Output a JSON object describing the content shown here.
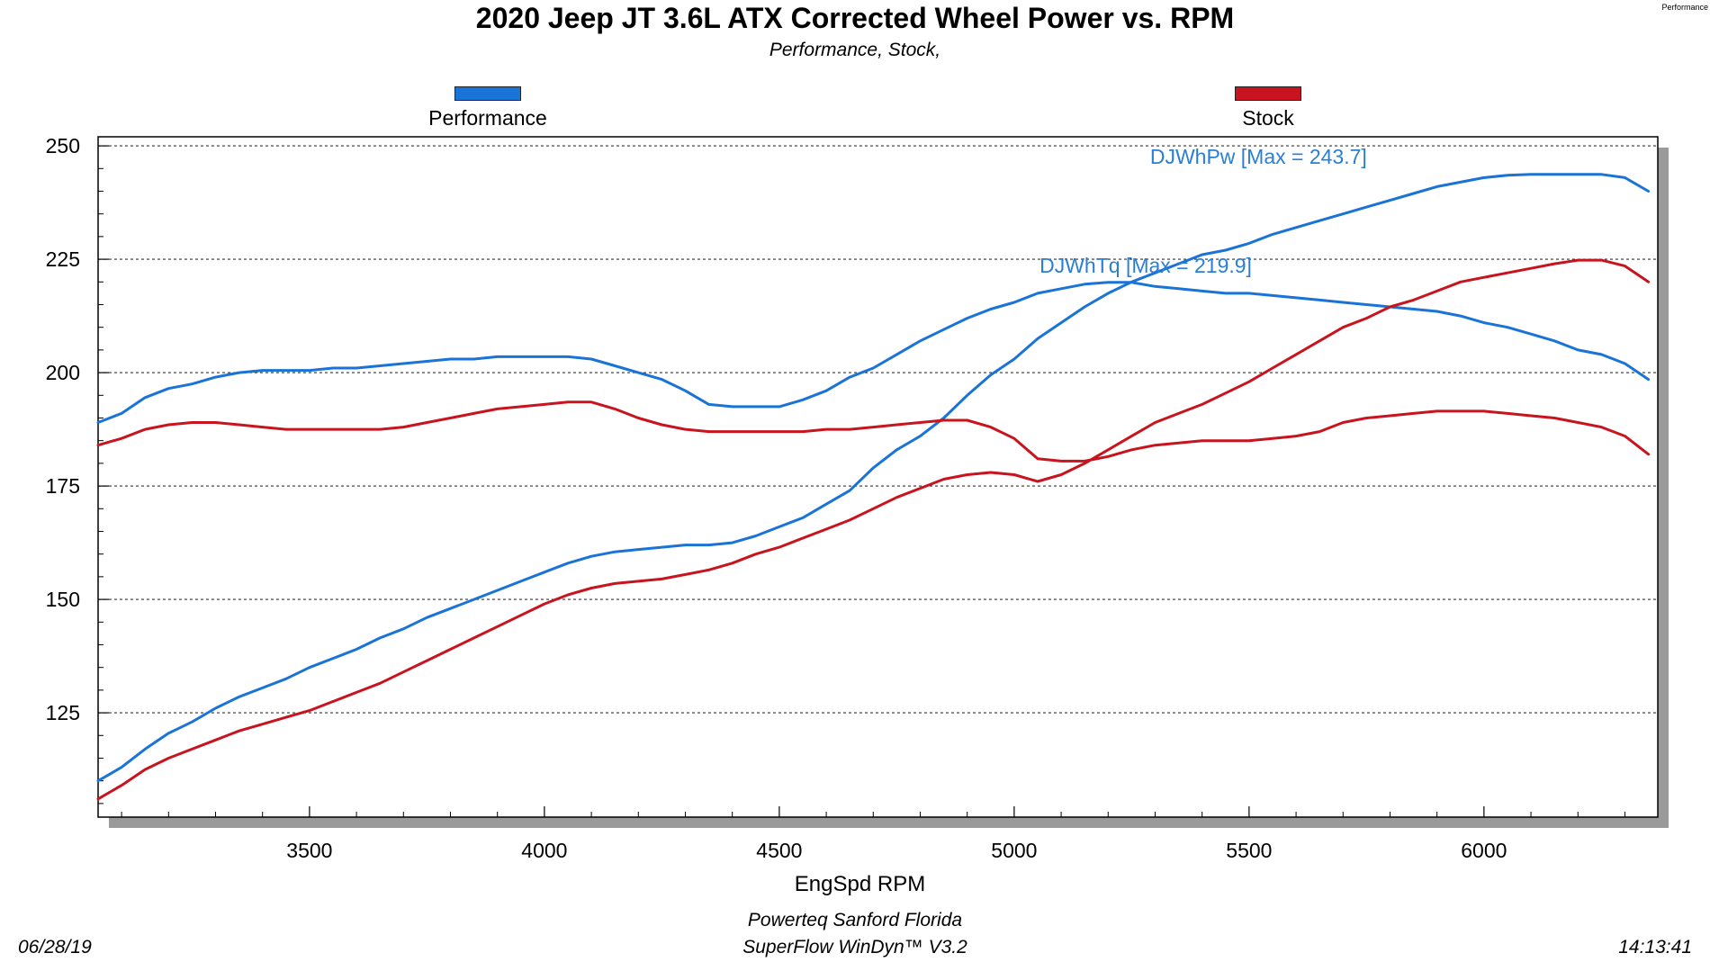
{
  "header": {
    "title": "2020 Jeep JT 3.6L ATX Corrected Wheel Power vs. RPM",
    "subtitle": "Performance, Stock,",
    "corner_tag": "Performance"
  },
  "footer": {
    "date": "06/28/19",
    "shop": "Powerteq Sanford Florida",
    "software": "SuperFlow WinDyn™ V3.2",
    "time": "14:13:41"
  },
  "colors": {
    "performance": "#1a73d6",
    "stock": "#c8141e",
    "annotation": "#2a7fd4",
    "grid": "#333333"
  },
  "chart_data": {
    "type": "line",
    "title": "2020 Jeep JT 3.6L ATX Corrected Wheel Power vs. RPM",
    "subtitle": "Performance, Stock,",
    "xlabel": "EngSpd RPM",
    "ylabel": "",
    "xlim": [
      3050,
      6370
    ],
    "ylim": [
      102,
      252
    ],
    "xticks": [
      3500,
      4000,
      4500,
      5000,
      5500,
      6000
    ],
    "yticks": [
      125,
      150,
      175,
      200,
      225,
      250
    ],
    "grid": true,
    "legend": [
      {
        "name": "Performance",
        "color": "#1a73d6",
        "position": "top-left"
      },
      {
        "name": "Stock",
        "color": "#c8141e",
        "position": "top-right"
      }
    ],
    "annotations": [
      {
        "text": "DJWhPw [Max = 243.7]",
        "x": 5520,
        "y": 246
      },
      {
        "text": "DJWhTq [Max = 219.9]",
        "x": 5280,
        "y": 222
      }
    ],
    "series": [
      {
        "name": "Performance",
        "measure": "DJWhTq",
        "color": "#1a73d6",
        "x": [
          3050,
          3100,
          3150,
          3200,
          3250,
          3300,
          3350,
          3400,
          3450,
          3500,
          3550,
          3600,
          3650,
          3700,
          3750,
          3800,
          3850,
          3900,
          3950,
          4000,
          4050,
          4100,
          4150,
          4200,
          4250,
          4300,
          4350,
          4400,
          4450,
          4500,
          4550,
          4600,
          4650,
          4700,
          4750,
          4800,
          4850,
          4900,
          4950,
          5000,
          5050,
          5100,
          5150,
          5200,
          5250,
          5300,
          5350,
          5400,
          5450,
          5500,
          5550,
          5600,
          5650,
          5700,
          5750,
          5800,
          5850,
          5900,
          5950,
          6000,
          6050,
          6100,
          6150,
          6200,
          6250,
          6300,
          6350
        ],
        "y": [
          189,
          191,
          194.5,
          196.5,
          197.5,
          199,
          200,
          200.5,
          200.5,
          200.5,
          201,
          201,
          201.5,
          202,
          202.5,
          203,
          203,
          203.5,
          203.5,
          203.5,
          203.5,
          203,
          201.5,
          200,
          198.5,
          196,
          193,
          192.5,
          192.5,
          192.5,
          194,
          196,
          199,
          201,
          204,
          207,
          209.5,
          212,
          214,
          215.5,
          217.5,
          218.5,
          219.5,
          219.9,
          219.9,
          219,
          218.5,
          218,
          217.5,
          217.5,
          217,
          216.5,
          216,
          215.5,
          215,
          214.5,
          214,
          213.5,
          212.5,
          211,
          210,
          208.5,
          207,
          205,
          204,
          202,
          198.5
        ]
      },
      {
        "name": "Performance",
        "measure": "DJWhPw",
        "color": "#1a73d6",
        "x": [
          3050,
          3100,
          3150,
          3200,
          3250,
          3300,
          3350,
          3400,
          3450,
          3500,
          3550,
          3600,
          3650,
          3700,
          3750,
          3800,
          3850,
          3900,
          3950,
          4000,
          4050,
          4100,
          4150,
          4200,
          4250,
          4300,
          4350,
          4400,
          4450,
          4500,
          4550,
          4600,
          4650,
          4700,
          4750,
          4800,
          4850,
          4900,
          4950,
          5000,
          5050,
          5100,
          5150,
          5200,
          5250,
          5300,
          5350,
          5400,
          5450,
          5500,
          5550,
          5600,
          5650,
          5700,
          5750,
          5800,
          5850,
          5900,
          5950,
          6000,
          6050,
          6100,
          6150,
          6200,
          6250,
          6300,
          6350
        ],
        "y": [
          110,
          113,
          117,
          120.5,
          123,
          126,
          128.5,
          130.5,
          132.5,
          135,
          137,
          139,
          141.5,
          143.5,
          146,
          148,
          150,
          152,
          154,
          156,
          158,
          159.5,
          160.5,
          161,
          161.5,
          162,
          162,
          162.5,
          164,
          166,
          168,
          171,
          174,
          179,
          183,
          186,
          190,
          195,
          199.5,
          203,
          207.5,
          211,
          214.5,
          217.5,
          220,
          222,
          224,
          226,
          227,
          228.5,
          230.5,
          232,
          233.5,
          235,
          236.5,
          238,
          239.5,
          241,
          242,
          243,
          243.5,
          243.7,
          243.7,
          243.7,
          243.7,
          243,
          240
        ]
      },
      {
        "name": "Stock",
        "measure": "DJWhTq",
        "color": "#c8141e",
        "x": [
          3050,
          3100,
          3150,
          3200,
          3250,
          3300,
          3350,
          3400,
          3450,
          3500,
          3550,
          3600,
          3650,
          3700,
          3750,
          3800,
          3850,
          3900,
          3950,
          4000,
          4050,
          4100,
          4150,
          4200,
          4250,
          4300,
          4350,
          4400,
          4450,
          4500,
          4550,
          4600,
          4650,
          4700,
          4750,
          4800,
          4850,
          4900,
          4950,
          5000,
          5050,
          5100,
          5150,
          5200,
          5250,
          5300,
          5350,
          5400,
          5450,
          5500,
          5550,
          5600,
          5650,
          5700,
          5750,
          5800,
          5850,
          5900,
          5950,
          6000,
          6050,
          6100,
          6150,
          6200,
          6250,
          6300,
          6350
        ],
        "y": [
          184,
          185.5,
          187.5,
          188.5,
          189,
          189,
          188.5,
          188,
          187.5,
          187.5,
          187.5,
          187.5,
          187.5,
          188,
          189,
          190,
          191,
          192,
          192.5,
          193,
          193.5,
          193.5,
          192,
          190,
          188.5,
          187.5,
          187,
          187,
          187,
          187,
          187,
          187.5,
          187.5,
          188,
          188.5,
          189,
          189.5,
          189.5,
          188,
          185.5,
          181,
          180.5,
          180.5,
          181.5,
          183,
          184,
          184.5,
          185,
          185,
          185,
          185.5,
          186,
          187,
          189,
          190,
          190.5,
          191,
          191.5,
          191.5,
          191.5,
          191,
          190.5,
          190,
          189,
          188,
          186,
          182
        ]
      },
      {
        "name": "Stock",
        "measure": "DJWhPw",
        "color": "#c8141e",
        "x": [
          3050,
          3100,
          3150,
          3200,
          3250,
          3300,
          3350,
          3400,
          3450,
          3500,
          3550,
          3600,
          3650,
          3700,
          3750,
          3800,
          3850,
          3900,
          3950,
          4000,
          4050,
          4100,
          4150,
          4200,
          4250,
          4300,
          4350,
          4400,
          4450,
          4500,
          4550,
          4600,
          4650,
          4700,
          4750,
          4800,
          4850,
          4900,
          4950,
          5000,
          5050,
          5100,
          5150,
          5200,
          5250,
          5300,
          5350,
          5400,
          5450,
          5500,
          5550,
          5600,
          5650,
          5700,
          5750,
          5800,
          5850,
          5900,
          5950,
          6000,
          6050,
          6100,
          6150,
          6200,
          6250,
          6300,
          6350
        ],
        "y": [
          106,
          109,
          112.5,
          115,
          117,
          119,
          121,
          122.5,
          124,
          125.5,
          127.5,
          129.5,
          131.5,
          134,
          136.5,
          139,
          141.5,
          144,
          146.5,
          149,
          151,
          152.5,
          153.5,
          154,
          154.5,
          155.5,
          156.5,
          158,
          160,
          161.5,
          163.5,
          165.5,
          167.5,
          170,
          172.5,
          174.5,
          176.5,
          177.5,
          178,
          177.5,
          176,
          177.5,
          180,
          183,
          186,
          189,
          191,
          193,
          195.5,
          198,
          201,
          204,
          207,
          210,
          212,
          214.5,
          216,
          218,
          220,
          221,
          222,
          223,
          224,
          224.8,
          224.8,
          223.5,
          220
        ]
      }
    ]
  }
}
